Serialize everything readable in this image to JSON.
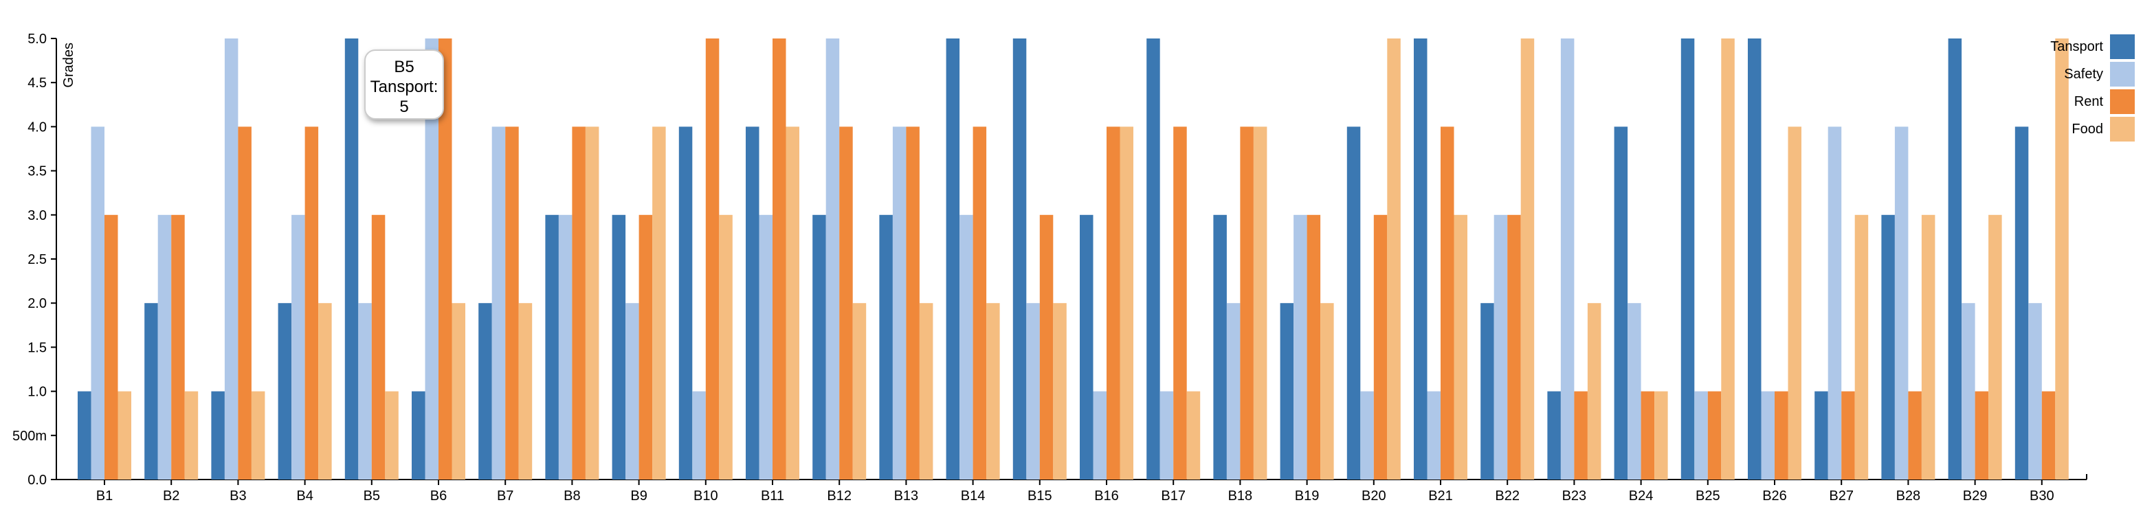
{
  "chart_data": {
    "type": "bar",
    "ylabel": "Grades",
    "ylim": [
      0,
      5
    ],
    "yticks": [
      "0.0",
      "500m",
      "1.0",
      "1.5",
      "2.0",
      "2.5",
      "3.0",
      "3.5",
      "4.0",
      "4.5",
      "5.0"
    ],
    "categories": [
      "B1",
      "B2",
      "B3",
      "B4",
      "B5",
      "B6",
      "B7",
      "B8",
      "B9",
      "B10",
      "B11",
      "B12",
      "B13",
      "B14",
      "B15",
      "B16",
      "B17",
      "B18",
      "B19",
      "B20",
      "B21",
      "B22",
      "B23",
      "B24",
      "B25",
      "B26",
      "B27",
      "B28",
      "B29",
      "B30"
    ],
    "series": [
      {
        "name": "Tansport",
        "color": "#3b78b2",
        "values": [
          1,
          2,
          1,
          2,
          5,
          1,
          2,
          3,
          3,
          4,
          4,
          3,
          3,
          5,
          5,
          3,
          5,
          3,
          2,
          4,
          5,
          2,
          1,
          4,
          5,
          5,
          1,
          3,
          5,
          4
        ]
      },
      {
        "name": "Safety",
        "color": "#aec7e8",
        "values": [
          4,
          3,
          5,
          3,
          2,
          5,
          4,
          3,
          2,
          1,
          3,
          5,
          4,
          3,
          2,
          1,
          1,
          2,
          3,
          1,
          1,
          3,
          5,
          2,
          1,
          1,
          4,
          4,
          2,
          2
        ]
      },
      {
        "name": "Rent",
        "color": "#f0883a",
        "values": [
          3,
          3,
          4,
          4,
          3,
          5,
          4,
          4,
          3,
          5,
          5,
          4,
          4,
          4,
          3,
          4,
          4,
          4,
          3,
          3,
          4,
          3,
          1,
          1,
          1,
          1,
          1,
          1,
          1,
          1
        ]
      },
      {
        "name": "Food",
        "color": "#f5bd80",
        "values": [
          1,
          1,
          1,
          2,
          1,
          2,
          2,
          4,
          4,
          3,
          4,
          2,
          2,
          2,
          2,
          4,
          1,
          4,
          2,
          5,
          3,
          5,
          2,
          1,
          5,
          4,
          3,
          3,
          3,
          5
        ]
      }
    ],
    "legend_position": "top-right",
    "grid": false
  },
  "tooltip": {
    "category": "B5",
    "series": "Tansport:",
    "value": "5"
  }
}
